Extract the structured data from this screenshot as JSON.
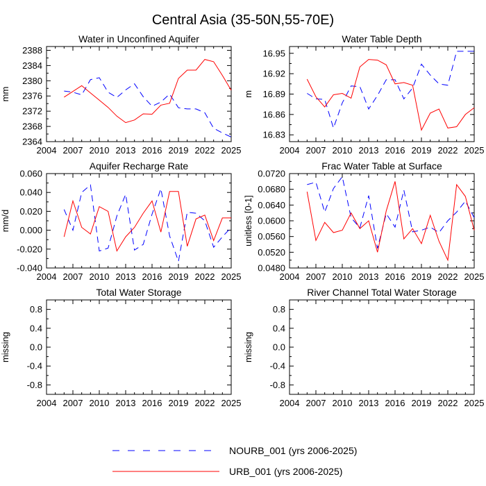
{
  "figure_title": "Central Asia (35-50N,55-70E)",
  "colors": {
    "nourb": "#0000ff",
    "urb": "#ff0000",
    "axes": "#000000"
  },
  "legend": [
    {
      "key": "nourb",
      "label": "NOURB_001 (yrs 2006-2025)",
      "style": "dashed"
    },
    {
      "key": "urb",
      "label": "URB_001 (yrs 2006-2025)",
      "style": "solid"
    }
  ],
  "chart_data": [
    {
      "type": "line",
      "title": "Water in Unconfined Aquifer",
      "ylabel": "mm",
      "xlim": [
        2004,
        2025
      ],
      "ylim": [
        2364,
        2389
      ],
      "xticks": [
        2004,
        2007,
        2010,
        2013,
        2016,
        2019,
        2022,
        2025
      ],
      "yticks": [
        2364,
        2368,
        2372,
        2376,
        2380,
        2384,
        2388
      ],
      "ytick_labels": [
        "2364",
        "2368",
        "2372",
        "2376",
        "2380",
        "2384",
        "2388"
      ],
      "x": [
        2006,
        2007,
        2008,
        2009,
        2010,
        2011,
        2012,
        2013,
        2014,
        2015,
        2016,
        2017,
        2018,
        2019,
        2020,
        2021,
        2022,
        2023,
        2024,
        2025
      ],
      "series": [
        {
          "name": "NOURB_001",
          "key": "nourb",
          "values": [
            2377.3,
            2377.0,
            2376.3,
            2380.3,
            2380.8,
            2377.0,
            2375.6,
            2377.6,
            2379.2,
            2375.8,
            2373.3,
            2374.4,
            2376.5,
            2372.9,
            2372.6,
            2372.6,
            2371.6,
            2367.5,
            2366.3,
            2365.2
          ]
        },
        {
          "name": "URB_001",
          "key": "urb",
          "values": [
            2375.7,
            2377.2,
            2378.7,
            2376.8,
            2374.9,
            2373.0,
            2370.7,
            2369.0,
            2369.7,
            2371.3,
            2371.2,
            2373.6,
            2374.1,
            2380.6,
            2382.8,
            2382.8,
            2385.6,
            2385.0,
            2381.4,
            2377.5
          ]
        }
      ]
    },
    {
      "type": "line",
      "title": "Water Table Depth",
      "ylabel": "m",
      "xlim": [
        2004,
        2025
      ],
      "ylim": [
        16.82,
        16.96
      ],
      "xticks": [
        2004,
        2007,
        2010,
        2013,
        2016,
        2019,
        2022,
        2025
      ],
      "yticks": [
        16.83,
        16.86,
        16.89,
        16.92,
        16.95
      ],
      "ytick_labels": [
        "16.83",
        "16.86",
        "16.89",
        "16.92",
        "16.95"
      ],
      "x": [
        2006,
        2007,
        2008,
        2009,
        2010,
        2011,
        2012,
        2013,
        2014,
        2015,
        2016,
        2017,
        2018,
        2019,
        2020,
        2021,
        2022,
        2023,
        2024,
        2025
      ],
      "series": [
        {
          "name": "NOURB_001",
          "key": "nourb",
          "values": [
            16.891,
            16.883,
            16.882,
            16.84,
            16.877,
            16.902,
            16.901,
            16.868,
            16.888,
            16.911,
            16.911,
            16.883,
            16.899,
            16.934,
            16.918,
            16.905,
            16.903,
            16.953,
            16.953,
            16.953
          ]
        },
        {
          "name": "URB_001",
          "key": "urb",
          "values": [
            16.912,
            16.886,
            16.871,
            16.889,
            16.891,
            16.884,
            16.93,
            16.941,
            16.94,
            16.933,
            16.905,
            16.907,
            16.903,
            16.837,
            16.862,
            16.868,
            16.84,
            16.842,
            16.86,
            16.87
          ]
        }
      ]
    },
    {
      "type": "line",
      "title": "Aquifer Recharge Rate",
      "ylabel": "mm/d",
      "xlim": [
        2004,
        2025
      ],
      "ylim": [
        -0.04,
        0.06
      ],
      "xticks": [
        2004,
        2007,
        2010,
        2013,
        2016,
        2019,
        2022,
        2025
      ],
      "yticks": [
        -0.04,
        -0.02,
        0.0,
        0.02,
        0.04,
        0.06
      ],
      "ytick_labels": [
        "-0.040",
        "-0.020",
        "0.000",
        "0.020",
        "0.040",
        "0.060"
      ],
      "x": [
        2006,
        2007,
        2008,
        2009,
        2010,
        2011,
        2012,
        2013,
        2014,
        2015,
        2016,
        2017,
        2018,
        2019,
        2020,
        2021,
        2022,
        2023,
        2024,
        2025
      ],
      "series": [
        {
          "name": "NOURB_001",
          "key": "nourb",
          "values": [
            0.022,
            0.0,
            0.04,
            0.048,
            -0.022,
            -0.019,
            0.015,
            0.038,
            -0.021,
            -0.015,
            0.017,
            0.044,
            -0.006,
            -0.033,
            0.019,
            0.018,
            0.01,
            -0.018,
            -0.007,
            0.003
          ]
        },
        {
          "name": "URB_001",
          "key": "urb",
          "values": [
            -0.007,
            0.031,
            0.003,
            -0.004,
            0.025,
            0.02,
            -0.022,
            -0.007,
            0.003,
            0.018,
            0.031,
            -0.002,
            0.041,
            0.041,
            -0.017,
            0.012,
            0.016,
            -0.011,
            0.013,
            0.013
          ]
        }
      ]
    },
    {
      "type": "line",
      "title": "Frac Water Table at Surface",
      "ylabel": "unitless [0-1]",
      "xlim": [
        2004,
        2025
      ],
      "ylim": [
        0.048,
        0.072
      ],
      "xticks": [
        2004,
        2007,
        2010,
        2013,
        2016,
        2019,
        2022,
        2025
      ],
      "yticks": [
        0.048,
        0.052,
        0.056,
        0.06,
        0.064,
        0.068,
        0.072
      ],
      "ytick_labels": [
        "0.0480",
        "0.0520",
        "0.0560",
        "0.0600",
        "0.0640",
        "0.0680",
        "0.0720"
      ],
      "x": [
        2006,
        2007,
        2008,
        2009,
        2010,
        2011,
        2012,
        2013,
        2014,
        2015,
        2016,
        2017,
        2018,
        2019,
        2020,
        2021,
        2022,
        2023,
        2024,
        2025
      ],
      "series": [
        {
          "name": "NOURB_001",
          "key": "nourb",
          "values": [
            0.0692,
            0.0698,
            0.0622,
            0.0682,
            0.0712,
            0.0608,
            0.0582,
            0.0664,
            0.053,
            0.0618,
            0.0584,
            0.0678,
            0.0572,
            0.0576,
            0.0584,
            0.057,
            0.06,
            0.0622,
            0.065,
            0.0608
          ]
        },
        {
          "name": "URB_001",
          "key": "urb",
          "values": [
            0.0674,
            0.055,
            0.0596,
            0.057,
            0.0576,
            0.062,
            0.058,
            0.06,
            0.052,
            0.0625,
            0.07,
            0.0554,
            0.058,
            0.0542,
            0.0614,
            0.0548,
            0.05,
            0.0692,
            0.0662,
            0.0576
          ]
        }
      ]
    },
    {
      "type": "line",
      "title": "Total Water Storage",
      "ylabel": "missing",
      "xlim": [
        2004,
        2025
      ],
      "ylim": [
        -1,
        1
      ],
      "xticks": [
        2004,
        2007,
        2010,
        2013,
        2016,
        2019,
        2022,
        2025
      ],
      "yticks": [
        -0.8,
        -0.4,
        0.0,
        0.4,
        0.8
      ],
      "ytick_labels": [
        "-0.8",
        "-0.4",
        "0.0",
        "0.4",
        "0.8"
      ],
      "x": [],
      "series": []
    },
    {
      "type": "line",
      "title": "River Channel Total Water Storage",
      "ylabel": "missing",
      "xlim": [
        2004,
        2025
      ],
      "ylim": [
        -1,
        1
      ],
      "xticks": [
        2004,
        2007,
        2010,
        2013,
        2016,
        2019,
        2022,
        2025
      ],
      "yticks": [
        -0.8,
        -0.4,
        0.0,
        0.4,
        0.8
      ],
      "ytick_labels": [
        "-0.8",
        "-0.4",
        "0.0",
        "0.4",
        "0.8"
      ],
      "x": [],
      "series": []
    }
  ]
}
